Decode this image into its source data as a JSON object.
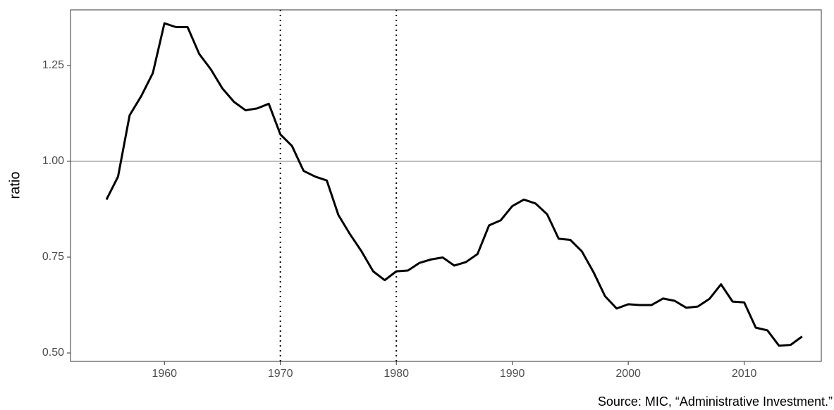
{
  "chart_data": {
    "type": "line",
    "y_label": "ratio",
    "caption": "Source: MIC, “Administrative Investment.”",
    "x": [
      1955,
      1956,
      1957,
      1958,
      1959,
      1960,
      1961,
      1962,
      1963,
      1964,
      1965,
      1966,
      1967,
      1968,
      1969,
      1970,
      1971,
      1972,
      1973,
      1974,
      1975,
      1976,
      1977,
      1978,
      1979,
      1980,
      1981,
      1982,
      1983,
      1984,
      1985,
      1986,
      1987,
      1988,
      1989,
      1990,
      1991,
      1992,
      1993,
      1994,
      1995,
      1996,
      1997,
      1998,
      1999,
      2000,
      2001,
      2002,
      2003,
      2004,
      2005,
      2006,
      2007,
      2008,
      2009,
      2010,
      2011,
      2012,
      2013,
      2014,
      2015
    ],
    "values": [
      0.9,
      0.96,
      1.12,
      1.17,
      1.23,
      1.36,
      1.35,
      1.35,
      1.28,
      1.24,
      1.19,
      1.155,
      1.133,
      1.138,
      1.15,
      1.07,
      1.04,
      0.975,
      0.96,
      0.95,
      0.86,
      0.81,
      0.765,
      0.713,
      0.69,
      0.713,
      0.715,
      0.735,
      0.744,
      0.749,
      0.728,
      0.737,
      0.758,
      0.833,
      0.846,
      0.883,
      0.9,
      0.89,
      0.862,
      0.798,
      0.795,
      0.765,
      0.711,
      0.648,
      0.616,
      0.627,
      0.625,
      0.625,
      0.642,
      0.636,
      0.618,
      0.621,
      0.641,
      0.679,
      0.634,
      0.632,
      0.566,
      0.559,
      0.519,
      0.521,
      0.543
    ],
    "color": "#000000",
    "xlim": [
      1951.9,
      2016.65
    ],
    "ylim": [
      0.478,
      1.395
    ],
    "xticks": [
      1960,
      1970,
      1980,
      1990,
      2000,
      2010
    ],
    "yticks": [
      {
        "value": 0.5,
        "label": "0.50"
      },
      {
        "value": 0.75,
        "label": "0.75"
      },
      {
        "value": 1.0,
        "label": "1.00"
      },
      {
        "value": 1.25,
        "label": "1.25"
      }
    ],
    "hlines": [
      1.0
    ],
    "vlines": [
      1970,
      1980
    ]
  }
}
